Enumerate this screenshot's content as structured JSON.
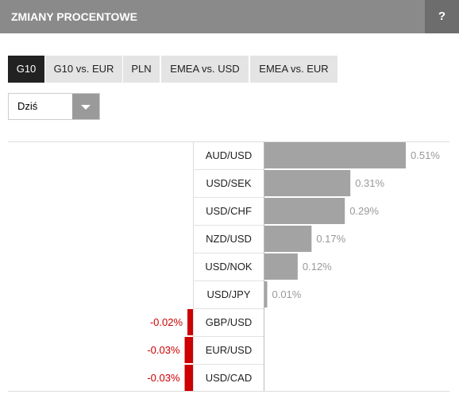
{
  "header": {
    "title": "ZMIANY PROCENTOWE",
    "help": "?"
  },
  "tabs": [
    "G10",
    "G10 vs. EUR",
    "PLN",
    "EMEA vs. USD",
    "EMEA vs. EUR"
  ],
  "dropdown": {
    "selected": "Dziś"
  },
  "chart_data": {
    "type": "bar",
    "orientation": "horizontal",
    "categories": [
      "AUD/USD",
      "USD/SEK",
      "USD/CHF",
      "NZD/USD",
      "USD/NOK",
      "USD/JPY",
      "GBP/USD",
      "EUR/USD",
      "USD/CAD"
    ],
    "values": [
      0.51,
      0.31,
      0.29,
      0.17,
      0.12,
      0.01,
      -0.02,
      -0.03,
      -0.03
    ],
    "value_labels": [
      "0.51%",
      "0.31%",
      "0.29%",
      "0.17%",
      "0.12%",
      "0.01%",
      "-0.02%",
      "-0.03%",
      "-0.03%"
    ],
    "positive_color": "#a3a3a3",
    "negative_color": "#cc0000"
  }
}
